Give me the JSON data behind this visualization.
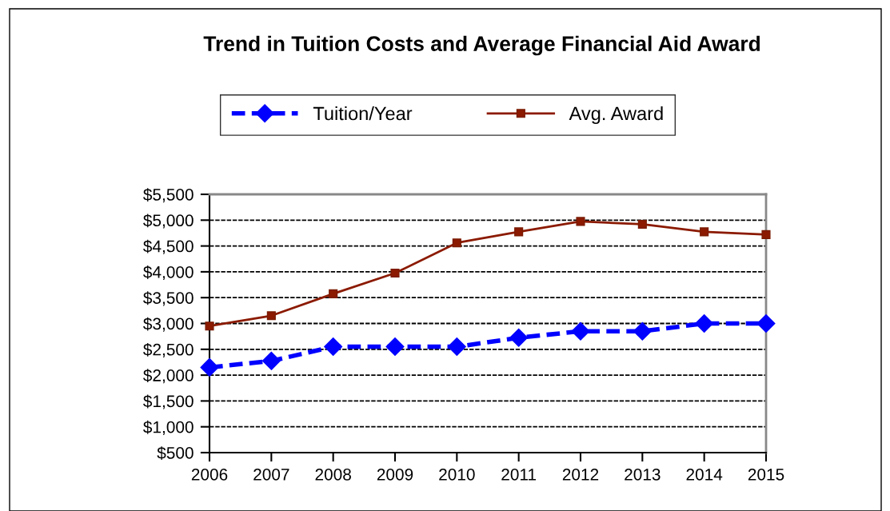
{
  "chart_data": {
    "type": "line",
    "title": "Trend in Tuition Costs and Average Financial Aid Award",
    "x": [
      2006,
      2007,
      2008,
      2009,
      2010,
      2011,
      2012,
      2013,
      2014,
      2015
    ],
    "series": [
      {
        "name": "Tuition/Year",
        "color": "#0000ff",
        "marker": "diamond",
        "line_style": "dashed",
        "values": [
          2150,
          2275,
          2550,
          2550,
          2550,
          2725,
          2850,
          2850,
          3000,
          3000
        ]
      },
      {
        "name": "Avg. Award",
        "color": "#8b1a00",
        "marker": "square",
        "line_style": "solid",
        "values": [
          2950,
          3150,
          3575,
          3975,
          4560,
          4775,
          4975,
          4920,
          4775,
          4720
        ]
      }
    ],
    "xlim": [
      2006,
      2015
    ],
    "xticks": [
      2006,
      2007,
      2008,
      2009,
      2010,
      2011,
      2012,
      2013,
      2014,
      2015
    ],
    "ylim": [
      500,
      5500
    ],
    "yticks": [
      {
        "value": 500,
        "label": "$500"
      },
      {
        "value": 1000,
        "label": "$1,000"
      },
      {
        "value": 1500,
        "label": "$1,500"
      },
      {
        "value": 2000,
        "label": "$2,000"
      },
      {
        "value": 2500,
        "label": "$2,500"
      },
      {
        "value": 3000,
        "label": "$3,000"
      },
      {
        "value": 3500,
        "label": "$3,500"
      },
      {
        "value": 4000,
        "label": "$4,000"
      },
      {
        "value": 4500,
        "label": "$4,500"
      },
      {
        "value": 5000,
        "label": "$5,000"
      },
      {
        "value": 5500,
        "label": "$5,500"
      }
    ],
    "grid": "y",
    "legend": "top"
  }
}
